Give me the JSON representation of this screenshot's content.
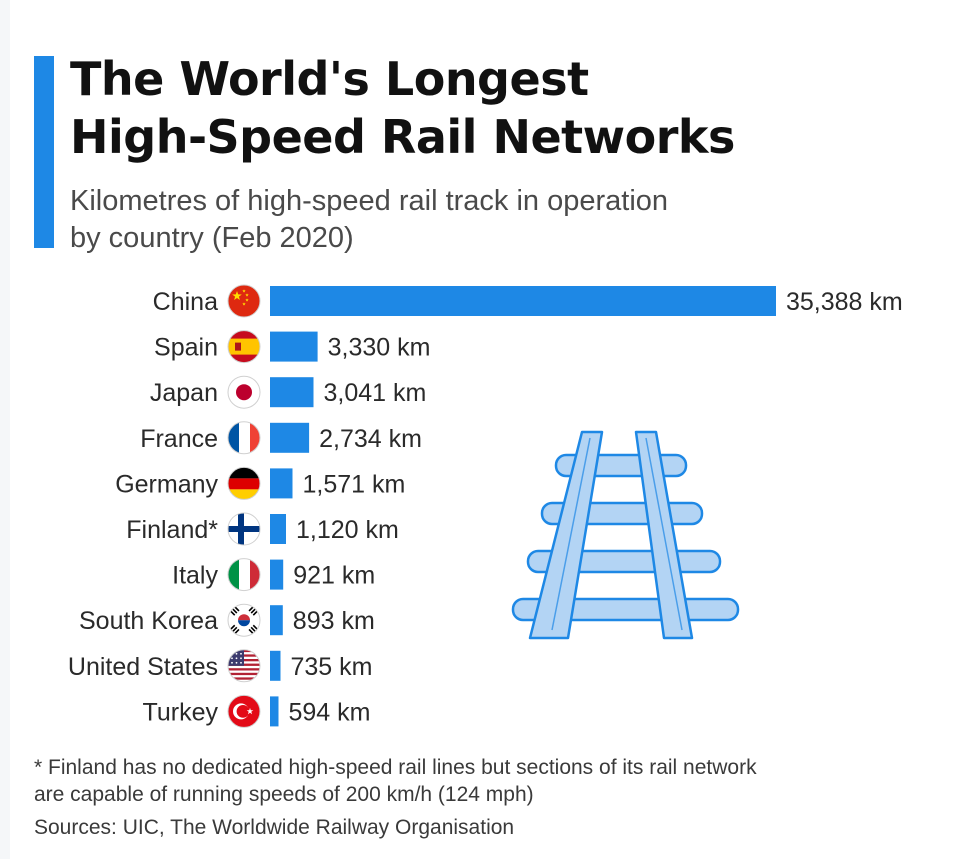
{
  "title": "The World's Longest\nHigh-Speed Rail Networks",
  "subtitle": "Kilometres of high-speed rail track in operation\nby country (Feb 2020)",
  "footnote": "* Finland has no dedicated high-speed rail lines but sections of its rail network\n   are capable of running speeds of 200 km/h (124 mph)",
  "sources": "Sources: UIC, The Worldwide Railway Organisation",
  "colors": {
    "bar": "#1e88e5",
    "accent": "#1e88e5",
    "rail_fill": "#b3d4f4",
    "rail_stroke": "#1e88e5"
  },
  "decoration_icon": "rail-tracks-icon",
  "chart_data": {
    "type": "bar",
    "orientation": "horizontal",
    "categories": [
      "China",
      "Spain",
      "Japan",
      "France",
      "Germany",
      "Finland*",
      "Italy",
      "South Korea",
      "United States",
      "Turkey"
    ],
    "values": [
      35388,
      3330,
      3041,
      2734,
      1571,
      1120,
      921,
      893,
      735,
      594
    ],
    "value_labels": [
      "35,388 km",
      "3,330 km",
      "3,041 km",
      "2,734 km",
      "1,571 km",
      "1,120 km",
      "921 km",
      "893 km",
      "735 km",
      "594 km"
    ],
    "flags": [
      "china-flag-icon",
      "spain-flag-icon",
      "japan-flag-icon",
      "france-flag-icon",
      "germany-flag-icon",
      "finland-flag-icon",
      "italy-flag-icon",
      "south-korea-flag-icon",
      "united-states-flag-icon",
      "turkey-flag-icon"
    ],
    "unit": "km",
    "xlim": [
      0,
      35388
    ],
    "grid": false,
    "legend": "none"
  }
}
